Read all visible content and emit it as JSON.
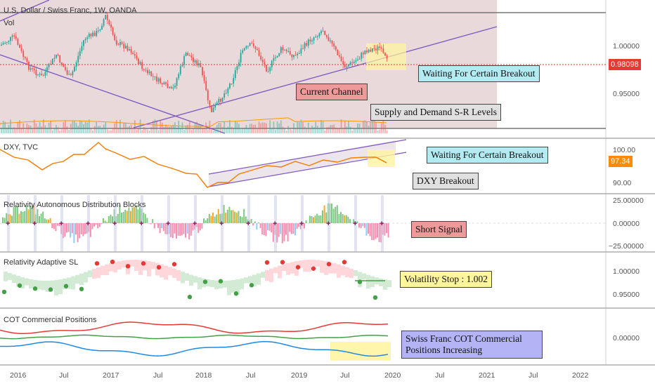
{
  "main_pane": {
    "title": "U.S. Dollar / Swiss Franc, 1W, OANDA",
    "volume_label": "Vol",
    "price_ticks": [
      "1.00000",
      "0.95000"
    ],
    "last_price": "0.98098",
    "last_price_color": "#e53935"
  },
  "dxy_pane": {
    "title": "DXY, TVC",
    "ticks": [
      "100.00",
      "90.00"
    ],
    "last_value": "97.34",
    "last_value_color": "#ff8c00"
  },
  "radb_pane": {
    "title": "Relativity Autonomous Distribution Blocks",
    "ticks": [
      "25.00000",
      "0.00000",
      "−25.00000"
    ]
  },
  "asl_pane": {
    "title": "Relativity Adaptive SL",
    "ticks": [
      "1.00000",
      "0.95000"
    ]
  },
  "cot_pane": {
    "title": "COT Commercial Positions",
    "ticks": [
      "0.00000"
    ]
  },
  "time_axis": [
    "2016",
    "Jul",
    "2017",
    "Jul",
    "2018",
    "Jul",
    "2019",
    "Jul",
    "2020",
    "Jul",
    "2021",
    "Jul",
    "2022"
  ],
  "annotations": {
    "waiting_main": "Waiting For Certain Breakout",
    "current_channel": "Current Channel",
    "supply_demand": "Supply and Demand S-R Levels",
    "waiting_dxy": "Waiting For Certain Breakout",
    "dxy_breakout": "DXY Breakout",
    "short_signal": "Short Signal",
    "volatility_stop": "Volatility Stop : 1.002",
    "cot_note": "Swiss Franc COT Commercial Positions Increasing"
  },
  "colors": {
    "up_candle": "#26a69a",
    "down_candle": "#ef5350",
    "dxy_line": "#f57c00",
    "channel_line": "#7e57c2",
    "cot_red": "#e53935",
    "cot_green": "#43a047",
    "cot_blue": "#1e88e5",
    "highlight_yellow": "#fff59d"
  }
}
